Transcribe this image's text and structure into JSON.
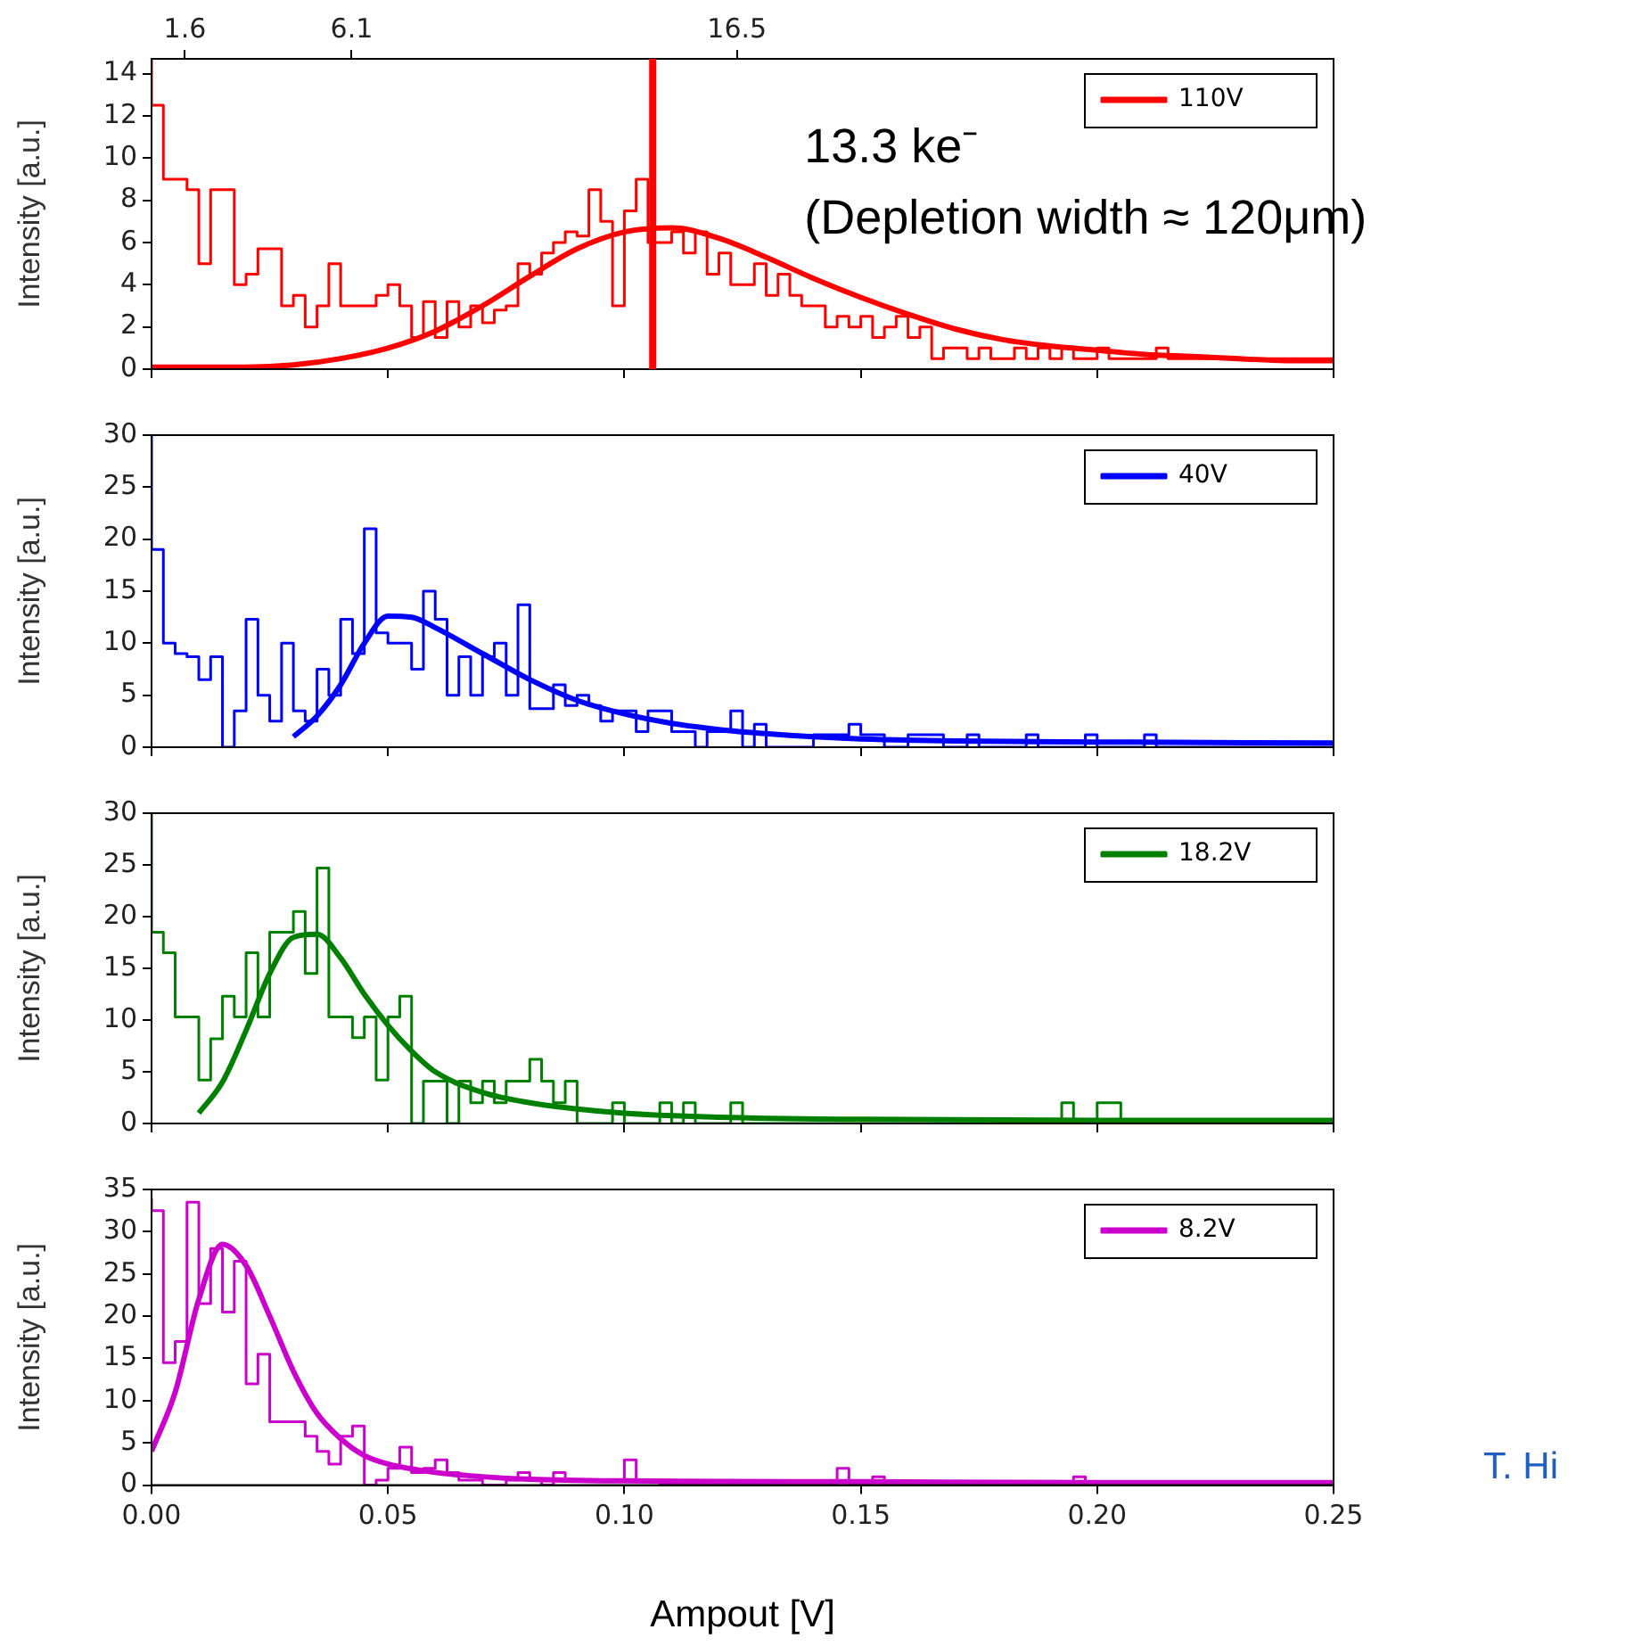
{
  "chart_data": [
    {
      "type": "step",
      "ylabel": "Intensity [a.u.]",
      "xlim": [
        0,
        0.25
      ],
      "xticks": [
        {
          "value": 0,
          "label": null
        },
        {
          "value": 0.05,
          "label": null
        },
        {
          "value": 0.1,
          "label": null
        },
        {
          "value": 0.15,
          "label": null
        },
        {
          "value": 0.2,
          "label": null
        },
        {
          "value": 0.25,
          "label": null
        }
      ],
      "x2lim": [
        0.7,
        32.6
      ],
      "x2ticks": [
        1.6,
        6.1,
        16.5
      ],
      "ylim": [
        0,
        14.7
      ],
      "yticks": [
        0,
        2,
        4,
        6,
        8,
        10,
        12,
        14
      ],
      "tick_labels": "y",
      "grid": false,
      "legend": "top right",
      "x": [
        0,
        0.0025,
        0.005,
        0.0075,
        0.01,
        0.0125,
        0.015,
        0.0175,
        0.02,
        0.0225,
        0.025,
        0.0275,
        0.03,
        0.0325,
        0.035,
        0.0375,
        0.04,
        0.0425,
        0.045,
        0.0475,
        0.05,
        0.0525,
        0.055,
        0.0575,
        0.06,
        0.0625,
        0.065,
        0.0675,
        0.07,
        0.0725,
        0.075,
        0.0775,
        0.08,
        0.0825,
        0.085,
        0.0875,
        0.09,
        0.0925,
        0.095,
        0.0975,
        0.1,
        0.1025,
        0.105,
        0.1075,
        0.11,
        0.1125,
        0.115,
        0.1175,
        0.12,
        0.1225,
        0.125,
        0.1275,
        0.13,
        0.1325,
        0.135,
        0.1375,
        0.14,
        0.1425,
        0.145,
        0.1475,
        0.15,
        0.1525,
        0.155,
        0.1575,
        0.16,
        0.1625,
        0.165,
        0.1675,
        0.17,
        0.1725,
        0.175,
        0.1775,
        0.18,
        0.1825,
        0.185,
        0.1875,
        0.19,
        0.1925,
        0.195,
        0.1975,
        0.2,
        0.2025,
        0.205,
        0.2075,
        0.21,
        0.2125,
        0.215,
        0.2175,
        0.22,
        0.2225,
        0.225,
        0.2275,
        0.23,
        0.2325,
        0.235,
        0.2375,
        0.24,
        0.2425,
        0.245,
        0.2475,
        0.25
      ],
      "series": [
        {
          "name": "110V",
          "color": "#ff0000",
          "values": [
            14.7,
            12.5,
            9,
            9,
            8.5,
            5,
            8.5,
            8.5,
            4,
            4.5,
            5.7,
            5.7,
            3,
            3.5,
            2,
            3,
            5,
            3,
            3,
            3,
            3.5,
            4,
            3,
            1.5,
            3.2,
            1.5,
            3.2,
            2,
            3,
            2.2,
            2.8,
            3,
            5,
            4.5,
            5.5,
            6,
            6.5,
            6.3,
            8.5,
            7,
            3,
            7.5,
            9,
            6,
            6,
            6.5,
            5.5,
            6.5,
            4.5,
            5.5,
            4,
            4,
            5,
            3.5,
            4.5,
            3.5,
            3,
            3,
            2,
            2.5,
            2,
            2.5,
            1.5,
            2,
            2.5,
            1.5,
            2,
            0.5,
            1,
            1,
            0.5,
            1,
            0.5,
            0.5,
            1,
            0.5,
            1,
            0.5,
            1,
            0.5,
            0.5,
            1,
            0.5,
            0.5,
            0.5,
            0.5,
            1,
            0.5,
            0.5,
            0.5,
            0.5,
            0.5,
            0.5,
            0.5,
            0.5,
            0.5,
            0.5,
            0.5,
            0.5,
            0.5,
            0.5
          ]
        },
        {
          "type": "line",
          "color": "#ff0000",
          "x": [
            0,
            0.01,
            0.02,
            0.03,
            0.04,
            0.05,
            0.06,
            0.07,
            0.08,
            0.09,
            0.1,
            0.11,
            0.12,
            0.13,
            0.14,
            0.15,
            0.16,
            0.17,
            0.18,
            0.19,
            0.2,
            0.21,
            0.22,
            0.23,
            0.24,
            0.25
          ],
          "values": [
            0.1,
            0.1,
            0.1,
            0.2,
            0.5,
            1,
            1.8,
            3,
            4.4,
            5.7,
            6.5,
            6.7,
            6.2,
            5.3,
            4.3,
            3.4,
            2.6,
            1.9,
            1.4,
            1.1,
            0.9,
            0.7,
            0.6,
            0.5,
            0.4,
            0.4
          ]
        }
      ],
      "ref_lines": [
        {
          "axis": "x",
          "value": 0.106,
          "color": "#ff0000"
        }
      ],
      "annotations": [
        "13.3 ke⁻",
        "(Depletion width ≈ 120μm)"
      ]
    },
    {
      "type": "step",
      "ylabel": "Intensity [a.u.]",
      "xlim": [
        0,
        0.25
      ],
      "xticks": [
        {
          "value": 0,
          "label": null
        },
        {
          "value": 0.05,
          "label": null
        },
        {
          "value": 0.1,
          "label": null
        },
        {
          "value": 0.15,
          "label": null
        },
        {
          "value": 0.2,
          "label": null
        },
        {
          "value": 0.25,
          "label": null
        }
      ],
      "ylim": [
        0,
        30
      ],
      "yticks": [
        0,
        5,
        10,
        15,
        20,
        25,
        30
      ],
      "tick_labels": "y",
      "grid": false,
      "legend": "top right",
      "x": [
        0,
        0.0025,
        0.005,
        0.0075,
        0.01,
        0.0125,
        0.015,
        0.0175,
        0.02,
        0.0225,
        0.025,
        0.0275,
        0.03,
        0.0325,
        0.035,
        0.0375,
        0.04,
        0.0425,
        0.045,
        0.0475,
        0.05,
        0.0525,
        0.055,
        0.0575,
        0.06,
        0.0625,
        0.065,
        0.0675,
        0.07,
        0.0725,
        0.075,
        0.0775,
        0.08,
        0.0825,
        0.085,
        0.0875,
        0.09,
        0.0925,
        0.095,
        0.0975,
        0.1,
        0.1025,
        0.105,
        0.1075,
        0.11,
        0.1125,
        0.115,
        0.1175,
        0.12,
        0.1225,
        0.125,
        0.1275,
        0.13,
        0.1325,
        0.135,
        0.1375,
        0.14,
        0.1425,
        0.145,
        0.1475,
        0.15,
        0.1525,
        0.155,
        0.1575,
        0.16,
        0.1625,
        0.165,
        0.1675,
        0.17,
        0.1725,
        0.175,
        0.1775,
        0.18,
        0.1825,
        0.185,
        0.1875,
        0.19,
        0.1925,
        0.195,
        0.1975,
        0.2,
        0.2025,
        0.205,
        0.2075,
        0.21,
        0.2125,
        0.215,
        0.2175,
        0.22,
        0.2225,
        0.225,
        0.2275,
        0.23,
        0.2325,
        0.235,
        0.2375,
        0.24,
        0.2425,
        0.245,
        0.2475,
        0.25
      ],
      "series": [
        {
          "name": "40V",
          "color": "#0000ff",
          "values": [
            30,
            19,
            10,
            9,
            8.7,
            6.5,
            8.7,
            0,
            3.5,
            12.3,
            5,
            2.5,
            10,
            3.5,
            2.5,
            7.5,
            5,
            12.3,
            9,
            21,
            11,
            10,
            10,
            7.5,
            15,
            12.3,
            5,
            8.7,
            5,
            8.7,
            10,
            5,
            13.7,
            3.7,
            3.7,
            6,
            4,
            5,
            4,
            2.5,
            3.5,
            3.5,
            1.5,
            3.5,
            3.5,
            1.5,
            1.5,
            0,
            1.5,
            1.5,
            3.5,
            0,
            2.2,
            0,
            0,
            0,
            0,
            1.2,
            1.2,
            1.2,
            2.2,
            1.2,
            1.2,
            0,
            0,
            1.2,
            1.2,
            1.2,
            0,
            0,
            1.2,
            0,
            0,
            0,
            0,
            1.2,
            0,
            0,
            0,
            0,
            1.2,
            0,
            0,
            0,
            0,
            1.2,
            0,
            0,
            0,
            0,
            0,
            0,
            0,
            0,
            0,
            0,
            0,
            0,
            0,
            0,
            0
          ]
        },
        {
          "type": "line",
          "color": "#0000ff",
          "x": [
            0.03,
            0.035,
            0.04,
            0.045,
            0.05,
            0.055,
            0.06,
            0.07,
            0.08,
            0.09,
            0.1,
            0.11,
            0.12,
            0.13,
            0.14,
            0.15,
            0.17,
            0.2,
            0.25
          ],
          "values": [
            1,
            3,
            6,
            10,
            12.6,
            12.5,
            11.5,
            9,
            6.5,
            4.5,
            3.2,
            2.3,
            1.7,
            1.3,
            1,
            0.8,
            0.6,
            0.5,
            0.4
          ]
        }
      ]
    },
    {
      "type": "step",
      "ylabel": "Intensity [a.u.]",
      "xlim": [
        0,
        0.25
      ],
      "xticks": [
        {
          "value": 0,
          "label": null
        },
        {
          "value": 0.05,
          "label": null
        },
        {
          "value": 0.1,
          "label": null
        },
        {
          "value": 0.15,
          "label": null
        },
        {
          "value": 0.2,
          "label": null
        },
        {
          "value": 0.25,
          "label": null
        }
      ],
      "ylim": [
        0,
        30
      ],
      "yticks": [
        0,
        5,
        10,
        15,
        20,
        25,
        30
      ],
      "tick_labels": "y",
      "grid": false,
      "legend": "top right",
      "x": [
        0,
        0.0025,
        0.005,
        0.0075,
        0.01,
        0.0125,
        0.015,
        0.0175,
        0.02,
        0.0225,
        0.025,
        0.0275,
        0.03,
        0.0325,
        0.035,
        0.0375,
        0.04,
        0.0425,
        0.045,
        0.0475,
        0.05,
        0.0525,
        0.055,
        0.0575,
        0.06,
        0.0625,
        0.065,
        0.0675,
        0.07,
        0.0725,
        0.075,
        0.0775,
        0.08,
        0.0825,
        0.085,
        0.0875,
        0.09,
        0.0925,
        0.095,
        0.0975,
        0.1,
        0.1025,
        0.105,
        0.1075,
        0.11,
        0.1125,
        0.115,
        0.1175,
        0.12,
        0.1225,
        0.125,
        0.1275,
        0.13,
        0.1325,
        0.135,
        0.1375,
        0.14,
        0.1425,
        0.145,
        0.1475,
        0.15,
        0.1525,
        0.155,
        0.1575,
        0.16,
        0.1625,
        0.165,
        0.1675,
        0.17,
        0.1725,
        0.175,
        0.1775,
        0.18,
        0.1825,
        0.185,
        0.1875,
        0.19,
        0.1925,
        0.195,
        0.1975,
        0.2,
        0.2025,
        0.205,
        0.2075,
        0.21,
        0.2125,
        0.215,
        0.2175,
        0.22,
        0.2225,
        0.225,
        0.2275,
        0.23,
        0.2325,
        0.235,
        0.2375,
        0.24,
        0.2425,
        0.245,
        0.2475,
        0.25
      ],
      "series": [
        {
          "name": "18.2V",
          "color": "#008000",
          "values": [
            30,
            18.5,
            16.5,
            10.3,
            10.3,
            4.2,
            8.2,
            12.3,
            10.3,
            16.5,
            10.3,
            18.5,
            18.5,
            20.5,
            14.5,
            24.7,
            10.3,
            10.3,
            8.3,
            10.3,
            4.2,
            10.3,
            12.3,
            0,
            4.1,
            4.1,
            0,
            4.1,
            2,
            4.1,
            2,
            4.1,
            4.1,
            6.2,
            4.1,
            2,
            4.1,
            0,
            0,
            0,
            2,
            0,
            0,
            0,
            2,
            0,
            2,
            0,
            0,
            0,
            2,
            0,
            0,
            0,
            0,
            0,
            0,
            0,
            0,
            0,
            0,
            0,
            0,
            0,
            0,
            0,
            0,
            0,
            0,
            0,
            0,
            0,
            0,
            0,
            0,
            0,
            0,
            0,
            2,
            0,
            0,
            2,
            2,
            0,
            0,
            0,
            0,
            0,
            0,
            0,
            0,
            0,
            0,
            0,
            0,
            0,
            0,
            0,
            0,
            0,
            0
          ]
        },
        {
          "type": "line",
          "color": "#008000",
          "x": [
            0.01,
            0.015,
            0.02,
            0.025,
            0.03,
            0.035,
            0.04,
            0.045,
            0.05,
            0.055,
            0.06,
            0.07,
            0.08,
            0.09,
            0.1,
            0.12,
            0.15,
            0.2,
            0.25
          ],
          "values": [
            1,
            4,
            9,
            14.5,
            18,
            18.3,
            16,
            12.5,
            9.5,
            7,
            5,
            3,
            2,
            1.4,
            1,
            0.6,
            0.4,
            0.3,
            0.3
          ]
        }
      ]
    },
    {
      "type": "step",
      "ylabel": "Intensity [a.u.]",
      "xlabel": "Ampout [V]",
      "xlim": [
        0,
        0.25
      ],
      "xticks": [
        {
          "value": 0,
          "label": "0.00"
        },
        {
          "value": 0.05,
          "label": "0.05"
        },
        {
          "value": 0.1,
          "label": "0.10"
        },
        {
          "value": 0.15,
          "label": "0.15"
        },
        {
          "value": 0.2,
          "label": "0.20"
        },
        {
          "value": 0.25,
          "label": "0.25"
        }
      ],
      "ylim": [
        0,
        35
      ],
      "yticks": [
        0,
        5,
        10,
        15,
        20,
        25,
        30,
        35
      ],
      "grid": false,
      "legend": "top right",
      "x": [
        0,
        0.0025,
        0.005,
        0.0075,
        0.01,
        0.0125,
        0.015,
        0.0175,
        0.02,
        0.0225,
        0.025,
        0.0275,
        0.03,
        0.0325,
        0.035,
        0.0375,
        0.04,
        0.0425,
        0.045,
        0.0475,
        0.05,
        0.0525,
        0.055,
        0.0575,
        0.06,
        0.0625,
        0.065,
        0.0675,
        0.07,
        0.0725,
        0.075,
        0.0775,
        0.08,
        0.0825,
        0.085,
        0.0875,
        0.09,
        0.0925,
        0.095,
        0.0975,
        0.1,
        0.1025,
        0.105,
        0.1075,
        0.11,
        0.1125,
        0.115,
        0.1175,
        0.12,
        0.1225,
        0.125,
        0.1275,
        0.13,
        0.1325,
        0.135,
        0.1375,
        0.14,
        0.1425,
        0.145,
        0.1475,
        0.15,
        0.1525,
        0.155,
        0.1575,
        0.16,
        0.1625,
        0.165,
        0.1675,
        0.17,
        0.1725,
        0.175,
        0.1775,
        0.18,
        0.1825,
        0.185,
        0.1875,
        0.19,
        0.1925,
        0.195,
        0.1975,
        0.2,
        0.2025,
        0.205,
        0.2075,
        0.21,
        0.2125,
        0.215,
        0.2175,
        0.22,
        0.2225,
        0.225,
        0.2275,
        0.23,
        0.2325,
        0.235,
        0.2375,
        0.24,
        0.2425,
        0.245,
        0.2475,
        0.25
      ],
      "series": [
        {
          "name": "8.2V",
          "color": "#cc00cc",
          "values": [
            34,
            32.5,
            14.5,
            17,
            33.5,
            21.5,
            28,
            20.5,
            26.5,
            12,
            15.5,
            7.5,
            7.5,
            7.5,
            5.8,
            4,
            2.5,
            5.8,
            7,
            0,
            0.6,
            2,
            4.5,
            1.5,
            2,
            3,
            1.5,
            0.6,
            0.6,
            0,
            0,
            0.6,
            1.5,
            0.6,
            0,
            1.5,
            0.6,
            0.6,
            0.6,
            0.6,
            0.6,
            3,
            0.6,
            0.6,
            0,
            0,
            0,
            0,
            0,
            0,
            0,
            0,
            0,
            0,
            0,
            0,
            0,
            0,
            0,
            2,
            0,
            0,
            1,
            0,
            0,
            0,
            0,
            0,
            0,
            0,
            0,
            0,
            0,
            0,
            0,
            0,
            0,
            0,
            0,
            1,
            0,
            0,
            0,
            0,
            0,
            0,
            0,
            0,
            0,
            0,
            0,
            0,
            0,
            0,
            0,
            0,
            0,
            0,
            0,
            0,
            0
          ]
        },
        {
          "type": "line",
          "color": "#cc00cc",
          "x": [
            0,
            0.005,
            0.01,
            0.015,
            0.02,
            0.025,
            0.03,
            0.035,
            0.04,
            0.045,
            0.05,
            0.06,
            0.07,
            0.08,
            0.1,
            0.15,
            0.2,
            0.25
          ],
          "values": [
            4,
            11,
            22,
            28.5,
            26,
            20,
            13.5,
            8.5,
            5.5,
            3.5,
            2.5,
            1.5,
            1,
            0.7,
            0.5,
            0.4,
            0.3,
            0.3
          ]
        }
      ],
      "annotations": [
        "T. Hi"
      ]
    }
  ]
}
